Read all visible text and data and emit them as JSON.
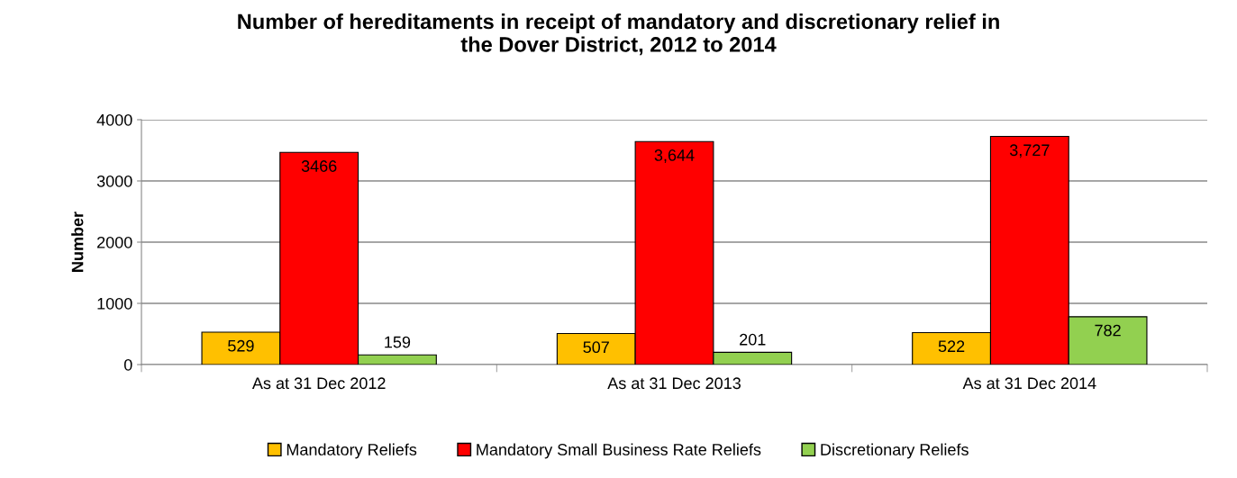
{
  "chart_data": {
    "type": "bar",
    "title": "Number of hereditaments in receipt of mandatory and discretionary relief in\nthe Dover District, 2012 to 2014",
    "ylabel": "Number",
    "categories": [
      "As at 31 Dec 2012",
      "As at 31 Dec 2013",
      "As at 31 Dec 2014"
    ],
    "series": [
      {
        "name": "Mandatory Reliefs",
        "color": "#ffc000",
        "values": [
          529,
          507,
          522
        ],
        "value_labels": [
          "529",
          "507",
          "522"
        ]
      },
      {
        "name": "Mandatory Small Business Rate Reliefs",
        "color": "#ff0000",
        "values": [
          3466,
          3644,
          3727
        ],
        "value_labels": [
          "3466",
          "3,644",
          "3,727"
        ]
      },
      {
        "name": "Discretionary Reliefs",
        "color": "#92d050",
        "values": [
          159,
          201,
          782
        ],
        "value_labels": [
          "159",
          "201",
          "782"
        ]
      }
    ],
    "ylim": [
      0,
      4000
    ],
    "yticks": [
      0,
      1000,
      2000,
      3000,
      4000
    ],
    "grid": "y",
    "legend": "bottom"
  }
}
